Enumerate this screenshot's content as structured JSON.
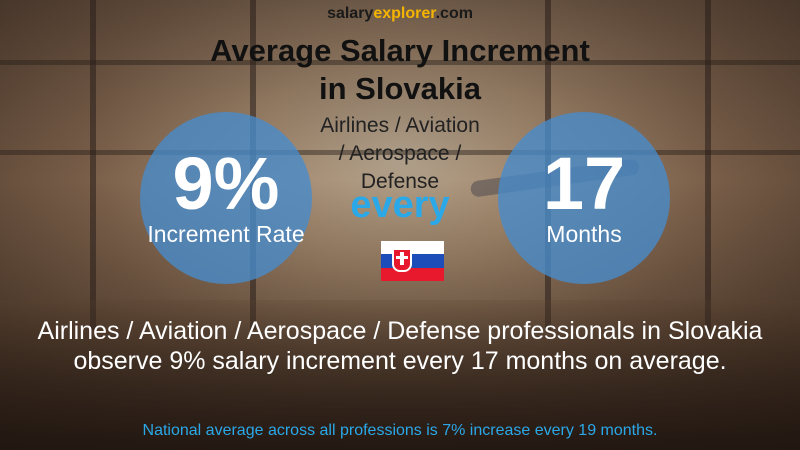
{
  "brand": {
    "part1": "salary",
    "part2": "explorer",
    "part3": ".com"
  },
  "title": {
    "line1": "Average Salary Increment",
    "line2": "in Slovakia"
  },
  "category": {
    "line1": "Airlines / Aviation",
    "line2": "/ Aerospace /",
    "line3": "Defense"
  },
  "increment": {
    "value": "9%",
    "label": "Increment Rate"
  },
  "connector": "every",
  "period": {
    "value": "17",
    "label": "Months"
  },
  "flag_icon": "slovakia-flag-icon",
  "description": "Airlines / Aviation / Aerospace / Defense professionals in Slovakia observe 9% salary increment every 17 months on average.",
  "national_note": "National average across all professions is 7% increase every 19 months.",
  "colors": {
    "circle": "#468ccd",
    "accent": "#2aa8e8",
    "brand_highlight": "#f5b400"
  }
}
